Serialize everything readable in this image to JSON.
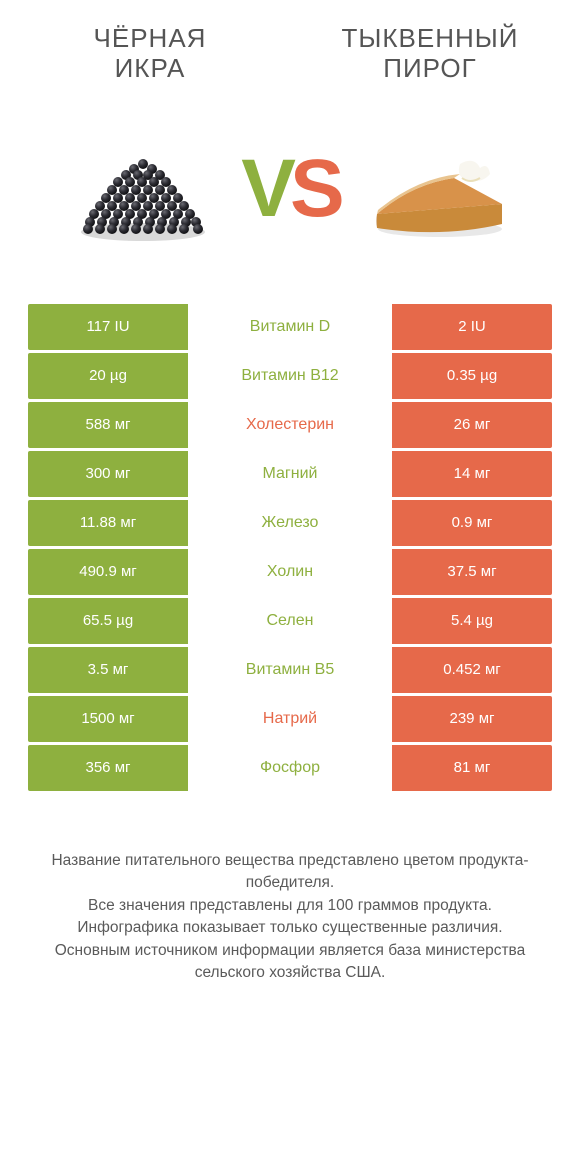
{
  "colors": {
    "green": "#8eb03f",
    "orange": "#e6694a",
    "text": "#555555",
    "white": "#ffffff"
  },
  "left": {
    "title": "ЧЁРНАЯ\nИКРА"
  },
  "right": {
    "title": "ТЫКВЕННЫЙ\nПИРОГ"
  },
  "vs": {
    "v": "V",
    "s": "S"
  },
  "rows": [
    {
      "left": "117 IU",
      "label": "Витамин D",
      "right": "2 IU",
      "winner": "left"
    },
    {
      "left": "20 µg",
      "label": "Витамин B12",
      "right": "0.35 µg",
      "winner": "left"
    },
    {
      "left": "588 мг",
      "label": "Холестерин",
      "right": "26 мг",
      "winner": "right"
    },
    {
      "left": "300 мг",
      "label": "Магний",
      "right": "14 мг",
      "winner": "left"
    },
    {
      "left": "11.88 мг",
      "label": "Железо",
      "right": "0.9 мг",
      "winner": "left"
    },
    {
      "left": "490.9 мг",
      "label": "Холин",
      "right": "37.5 мг",
      "winner": "left"
    },
    {
      "left": "65.5 µg",
      "label": "Селен",
      "right": "5.4 µg",
      "winner": "left"
    },
    {
      "left": "3.5 мг",
      "label": "Витамин B5",
      "right": "0.452 мг",
      "winner": "left"
    },
    {
      "left": "1500 мг",
      "label": "Натрий",
      "right": "239 мг",
      "winner": "right"
    },
    {
      "left": "356 мг",
      "label": "Фосфор",
      "right": "81 мг",
      "winner": "left"
    }
  ],
  "footer": [
    "Название питательного вещества представлено цветом продукта-победителя.",
    "Все значения представлены для 100 граммов продукта.",
    "Инфографика показывает только существенные различия.",
    "Основным источником информации является база министерства сельского хозяйства США."
  ]
}
